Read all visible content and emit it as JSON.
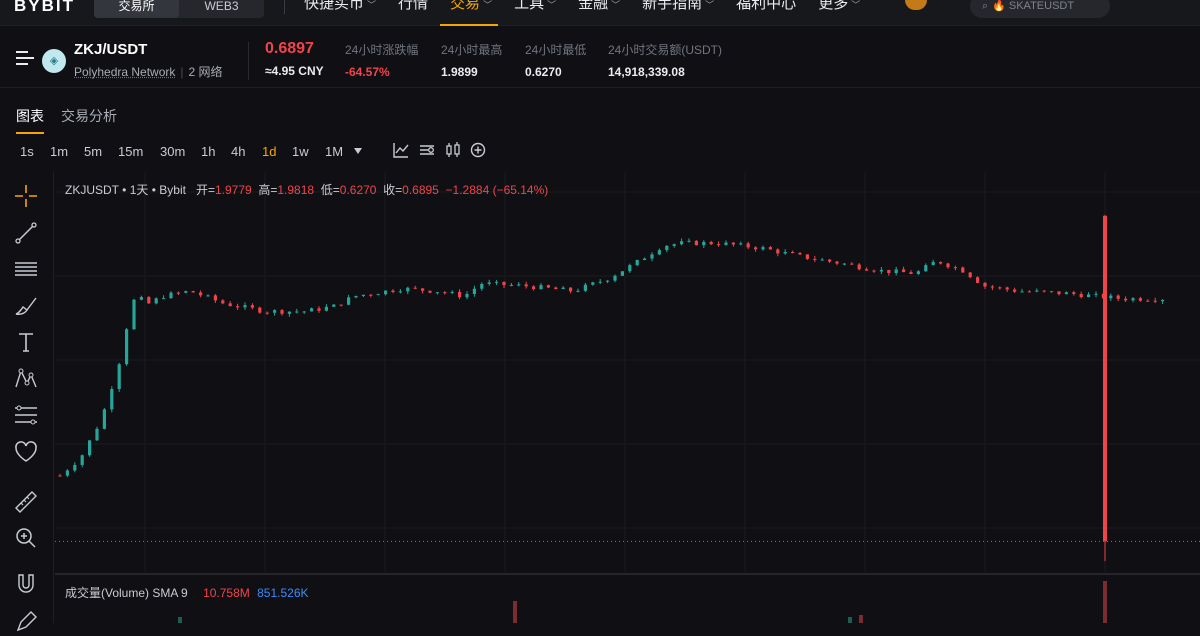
{
  "nav": {
    "logo": "BYBIT",
    "segments": [
      "交易所",
      "WEB3"
    ],
    "items": [
      {
        "label": "快捷买币",
        "chevron": true
      },
      {
        "label": "行情",
        "chevron": false
      },
      {
        "label": "交易",
        "chevron": true,
        "active": true
      },
      {
        "label": "工具",
        "chevron": true
      },
      {
        "label": "金融",
        "chevron": true
      },
      {
        "label": "新手指南",
        "chevron": true
      },
      {
        "label": "福利中心",
        "chevron": false
      },
      {
        "label": "更多",
        "chevron": true
      }
    ],
    "search_text": "SKATEUSDT"
  },
  "ticker": {
    "pair": "ZKJ/USDT",
    "project": "Polyhedra Network",
    "networks": "2 网络",
    "last_price": "0.6897",
    "cny": "≈4.95 CNY",
    "stats": [
      {
        "label": "24小时涨跌幅",
        "value": "-64.57%",
        "color": "red"
      },
      {
        "label": "24小时最高",
        "value": "1.9899",
        "color": "white"
      },
      {
        "label": "24小时最低",
        "value": "0.6270",
        "color": "white"
      },
      {
        "label": "24小时交易额(USDT)",
        "value": "14,918,339.08",
        "color": "white"
      }
    ]
  },
  "tabs": [
    "图表",
    "交易分析"
  ],
  "timeframes": [
    "1s",
    "1m",
    "5m",
    "15m",
    "30m",
    "1h",
    "4h",
    "1d",
    "1w",
    "1M"
  ],
  "active_timeframe": "1d",
  "chart_legend": {
    "symbol": "ZKJUSDT",
    "interval": "1天",
    "exchange": "Bybit",
    "open_label": "开=",
    "open": "1.9779",
    "high_label": "高=",
    "high": "1.9818",
    "low_label": "低=",
    "low": "0.6270",
    "close_label": "收=",
    "close": "0.6895",
    "change": "−1.2884 (−65.14%)"
  },
  "volume_legend": {
    "label": "成交量(Volume)",
    "sma": "SMA 9",
    "value": "10.758M",
    "sma_value": "851.526K"
  },
  "colors": {
    "up": "#26a69a",
    "down": "#ef454a",
    "accent": "#f7a600",
    "bg": "#101014"
  },
  "chart_data": {
    "type": "candlestick",
    "interval": "1d",
    "bars": 150,
    "y_range": [
      0.6,
      2.08
    ],
    "last_close": 0.6895
  }
}
